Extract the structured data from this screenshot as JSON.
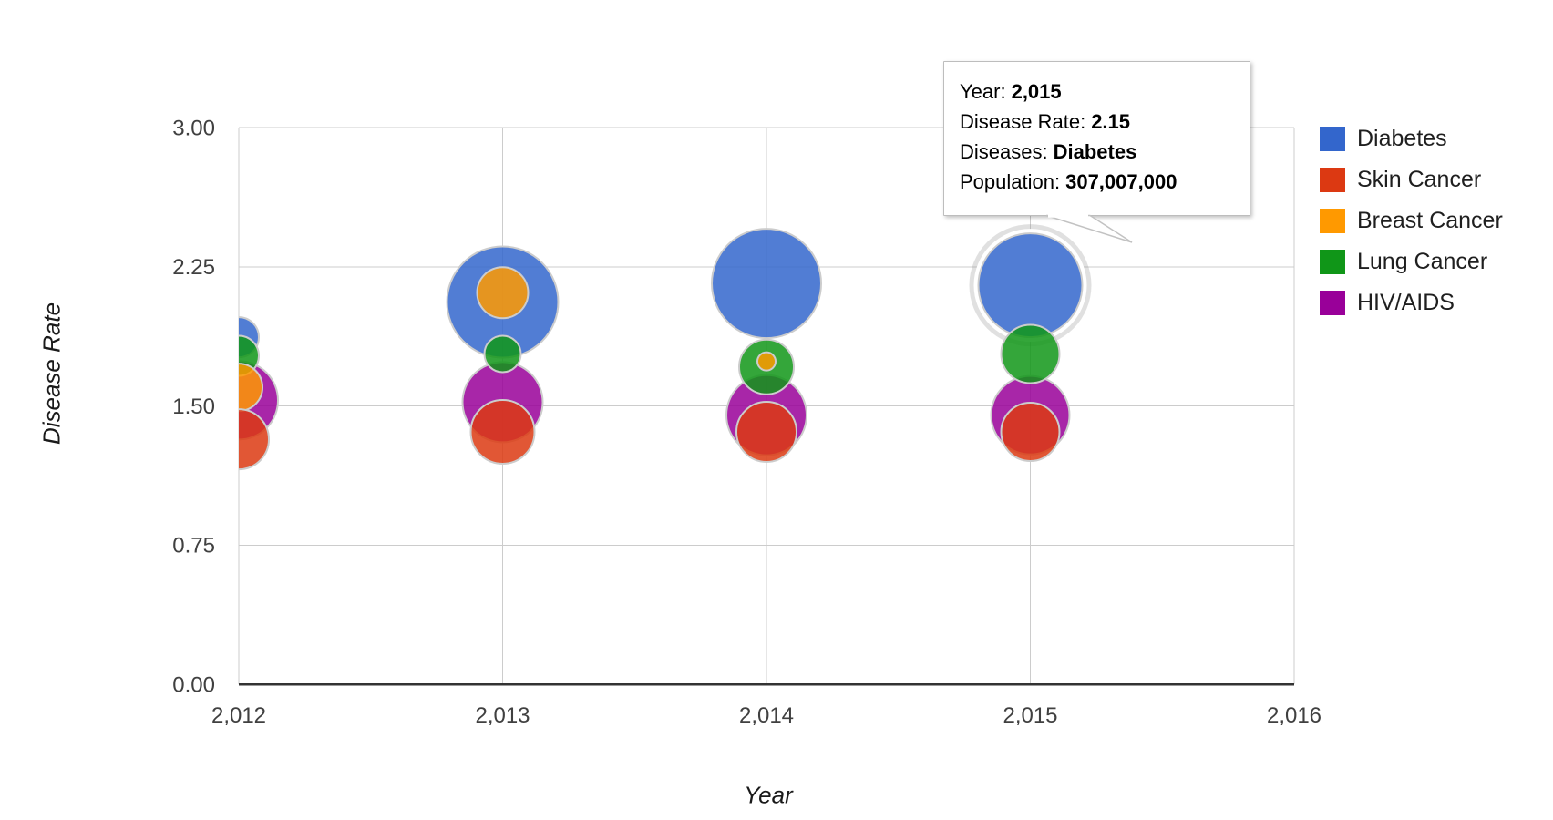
{
  "chart_data": {
    "type": "bubble",
    "title": "",
    "xlabel": "Year",
    "ylabel": "Disease Rate",
    "xlim": [
      2012,
      2016
    ],
    "ylim": [
      0,
      3
    ],
    "grid": true,
    "legend_position": "right",
    "x_axis": {
      "title": "Year",
      "ticks": [
        {
          "label": "2,012",
          "value": 2012
        },
        {
          "label": "2,013",
          "value": 2013
        },
        {
          "label": "2,014",
          "value": 2014
        },
        {
          "label": "2,015",
          "value": 2015
        },
        {
          "label": "2,016",
          "value": 2016
        }
      ]
    },
    "y_axis": {
      "title": "Disease Rate",
      "ticks": [
        {
          "label": "3.00",
          "value": 3.0
        },
        {
          "label": "2.25",
          "value": 2.25
        },
        {
          "label": "1.50",
          "value": 1.5
        },
        {
          "label": "0.75",
          "value": 0.75
        },
        {
          "label": "0.00",
          "value": 0.0
        }
      ]
    },
    "series": [
      {
        "name": "Diabetes",
        "color": "#3366CC",
        "points": [
          {
            "x": 2012,
            "y": 1.87,
            "r": 22
          },
          {
            "x": 2013,
            "y": 2.06,
            "r": 61
          },
          {
            "x": 2014,
            "y": 2.16,
            "r": 60
          },
          {
            "x": 2015,
            "y": 2.15,
            "r": 57,
            "highlighted": true,
            "population": "307,007,000"
          }
        ]
      },
      {
        "name": "Skin Cancer",
        "color": "#DC3912",
        "points": [
          {
            "x": 2012,
            "y": 1.32,
            "r": 33
          },
          {
            "x": 2013,
            "y": 1.36,
            "r": 35
          },
          {
            "x": 2014,
            "y": 1.36,
            "r": 33
          },
          {
            "x": 2015,
            "y": 1.36,
            "r": 32
          }
        ]
      },
      {
        "name": "Breast Cancer",
        "color": "#FF9900",
        "points": [
          {
            "x": 2012,
            "y": 1.6,
            "r": 26
          },
          {
            "x": 2013,
            "y": 2.11,
            "r": 28
          },
          {
            "x": 2014,
            "y": 1.74,
            "r": 10
          }
        ]
      },
      {
        "name": "Lung Cancer",
        "color": "#109618",
        "points": [
          {
            "x": 2012,
            "y": 1.77,
            "r": 22
          },
          {
            "x": 2013,
            "y": 1.78,
            "r": 20
          },
          {
            "x": 2014,
            "y": 1.71,
            "r": 30
          },
          {
            "x": 2015,
            "y": 1.78,
            "r": 32
          }
        ]
      },
      {
        "name": "HIV/AIDS",
        "color": "#990099",
        "points": [
          {
            "x": 2012,
            "y": 1.53,
            "r": 43
          },
          {
            "x": 2013,
            "y": 1.52,
            "r": 44
          },
          {
            "x": 2014,
            "y": 1.45,
            "r": 44
          },
          {
            "x": 2015,
            "y": 1.45,
            "r": 43
          }
        ]
      }
    ],
    "draw_order": [
      "Diabetes",
      "HIV/AIDS",
      "Lung Cancer",
      "Breast Cancer",
      "Skin Cancer"
    ]
  },
  "tooltip": {
    "rows": [
      {
        "label": "Year:",
        "value": "2,015"
      },
      {
        "label": "Disease Rate:",
        "value": "2.15"
      },
      {
        "label": "Diseases:",
        "value": "Diabetes"
      },
      {
        "label": "Population:",
        "value": "307,007,000"
      }
    ]
  },
  "legend": {
    "items": [
      {
        "label": "Diabetes",
        "color": "#3366CC"
      },
      {
        "label": "Skin Cancer",
        "color": "#DC3912"
      },
      {
        "label": "Breast Cancer",
        "color": "#FF9900"
      },
      {
        "label": "Lung Cancer",
        "color": "#109618"
      },
      {
        "label": "HIV/AIDS",
        "color": "#990099"
      }
    ]
  }
}
